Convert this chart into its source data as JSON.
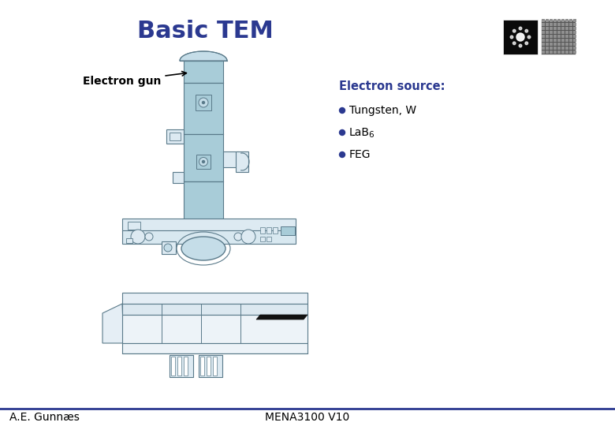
{
  "title": "Basic TEM",
  "title_color": "#2B3990",
  "title_fontsize": 22,
  "title_bold": true,
  "bg_color": "#ffffff",
  "footer_line_color": "#2B3990",
  "footer_left": "A.E. Gunnæs",
  "footer_right": "MENA3100 V10",
  "footer_fontsize": 10,
  "electron_gun_label": "Electron gun",
  "electron_source_title": "Electron source:",
  "electron_source_items": [
    "Tungsten, W",
    "LaB6",
    "FEG"
  ],
  "bullet_color": "#2B3990",
  "source_title_color": "#2B3990",
  "source_text_color": "#000000",
  "tem_light_blue": "#a8ccd8",
  "tem_outline": "#5a7a8a",
  "tem_mid_blue": "#c5dde8",
  "tem_pale": "#ddeaf2"
}
